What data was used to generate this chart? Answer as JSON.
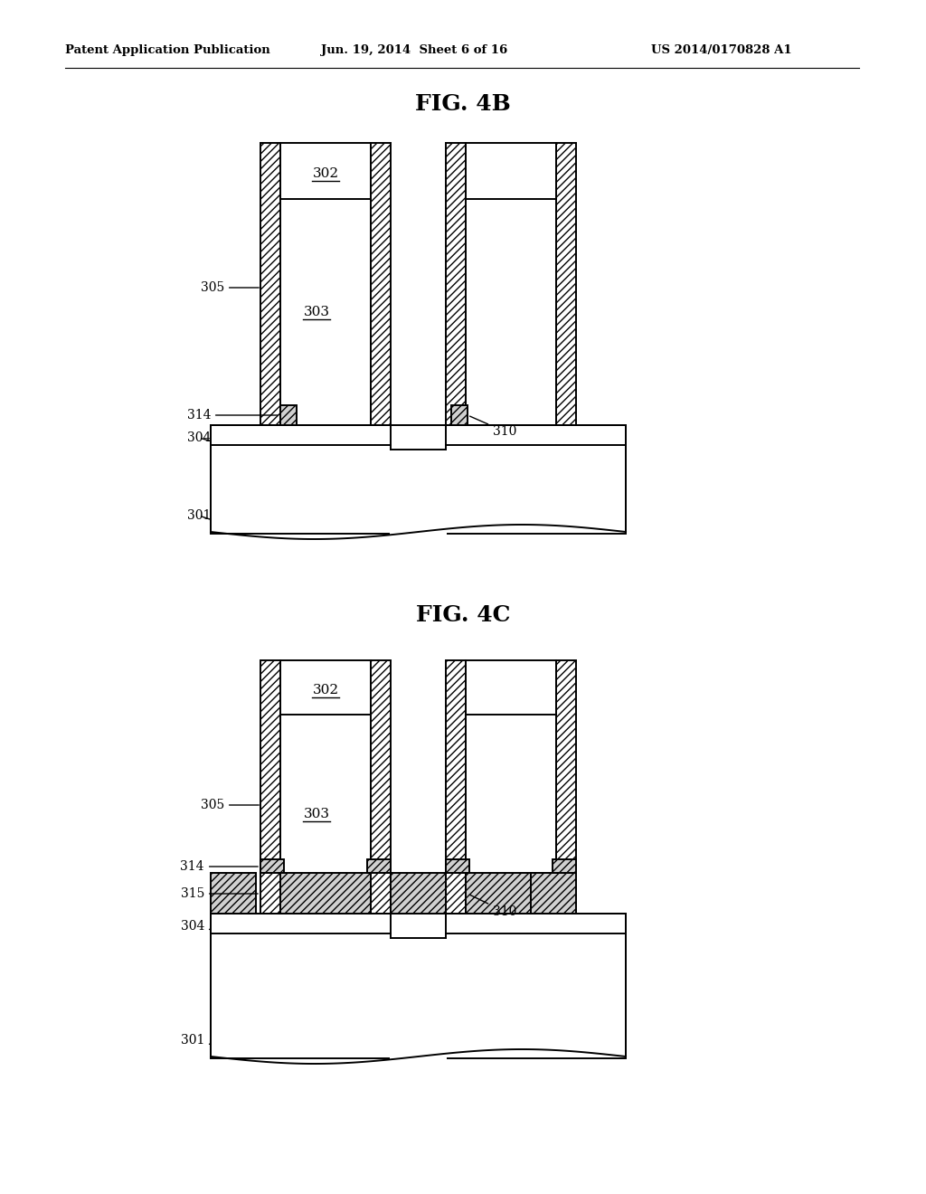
{
  "title_4b": "FIG. 4B",
  "title_4c": "FIG. 4C",
  "header_left": "Patent Application Publication",
  "header_mid": "Jun. 19, 2014  Sheet 6 of 16",
  "header_right": "US 2014/0170828 A1",
  "bg_color": "#ffffff",
  "line_color": "#000000"
}
